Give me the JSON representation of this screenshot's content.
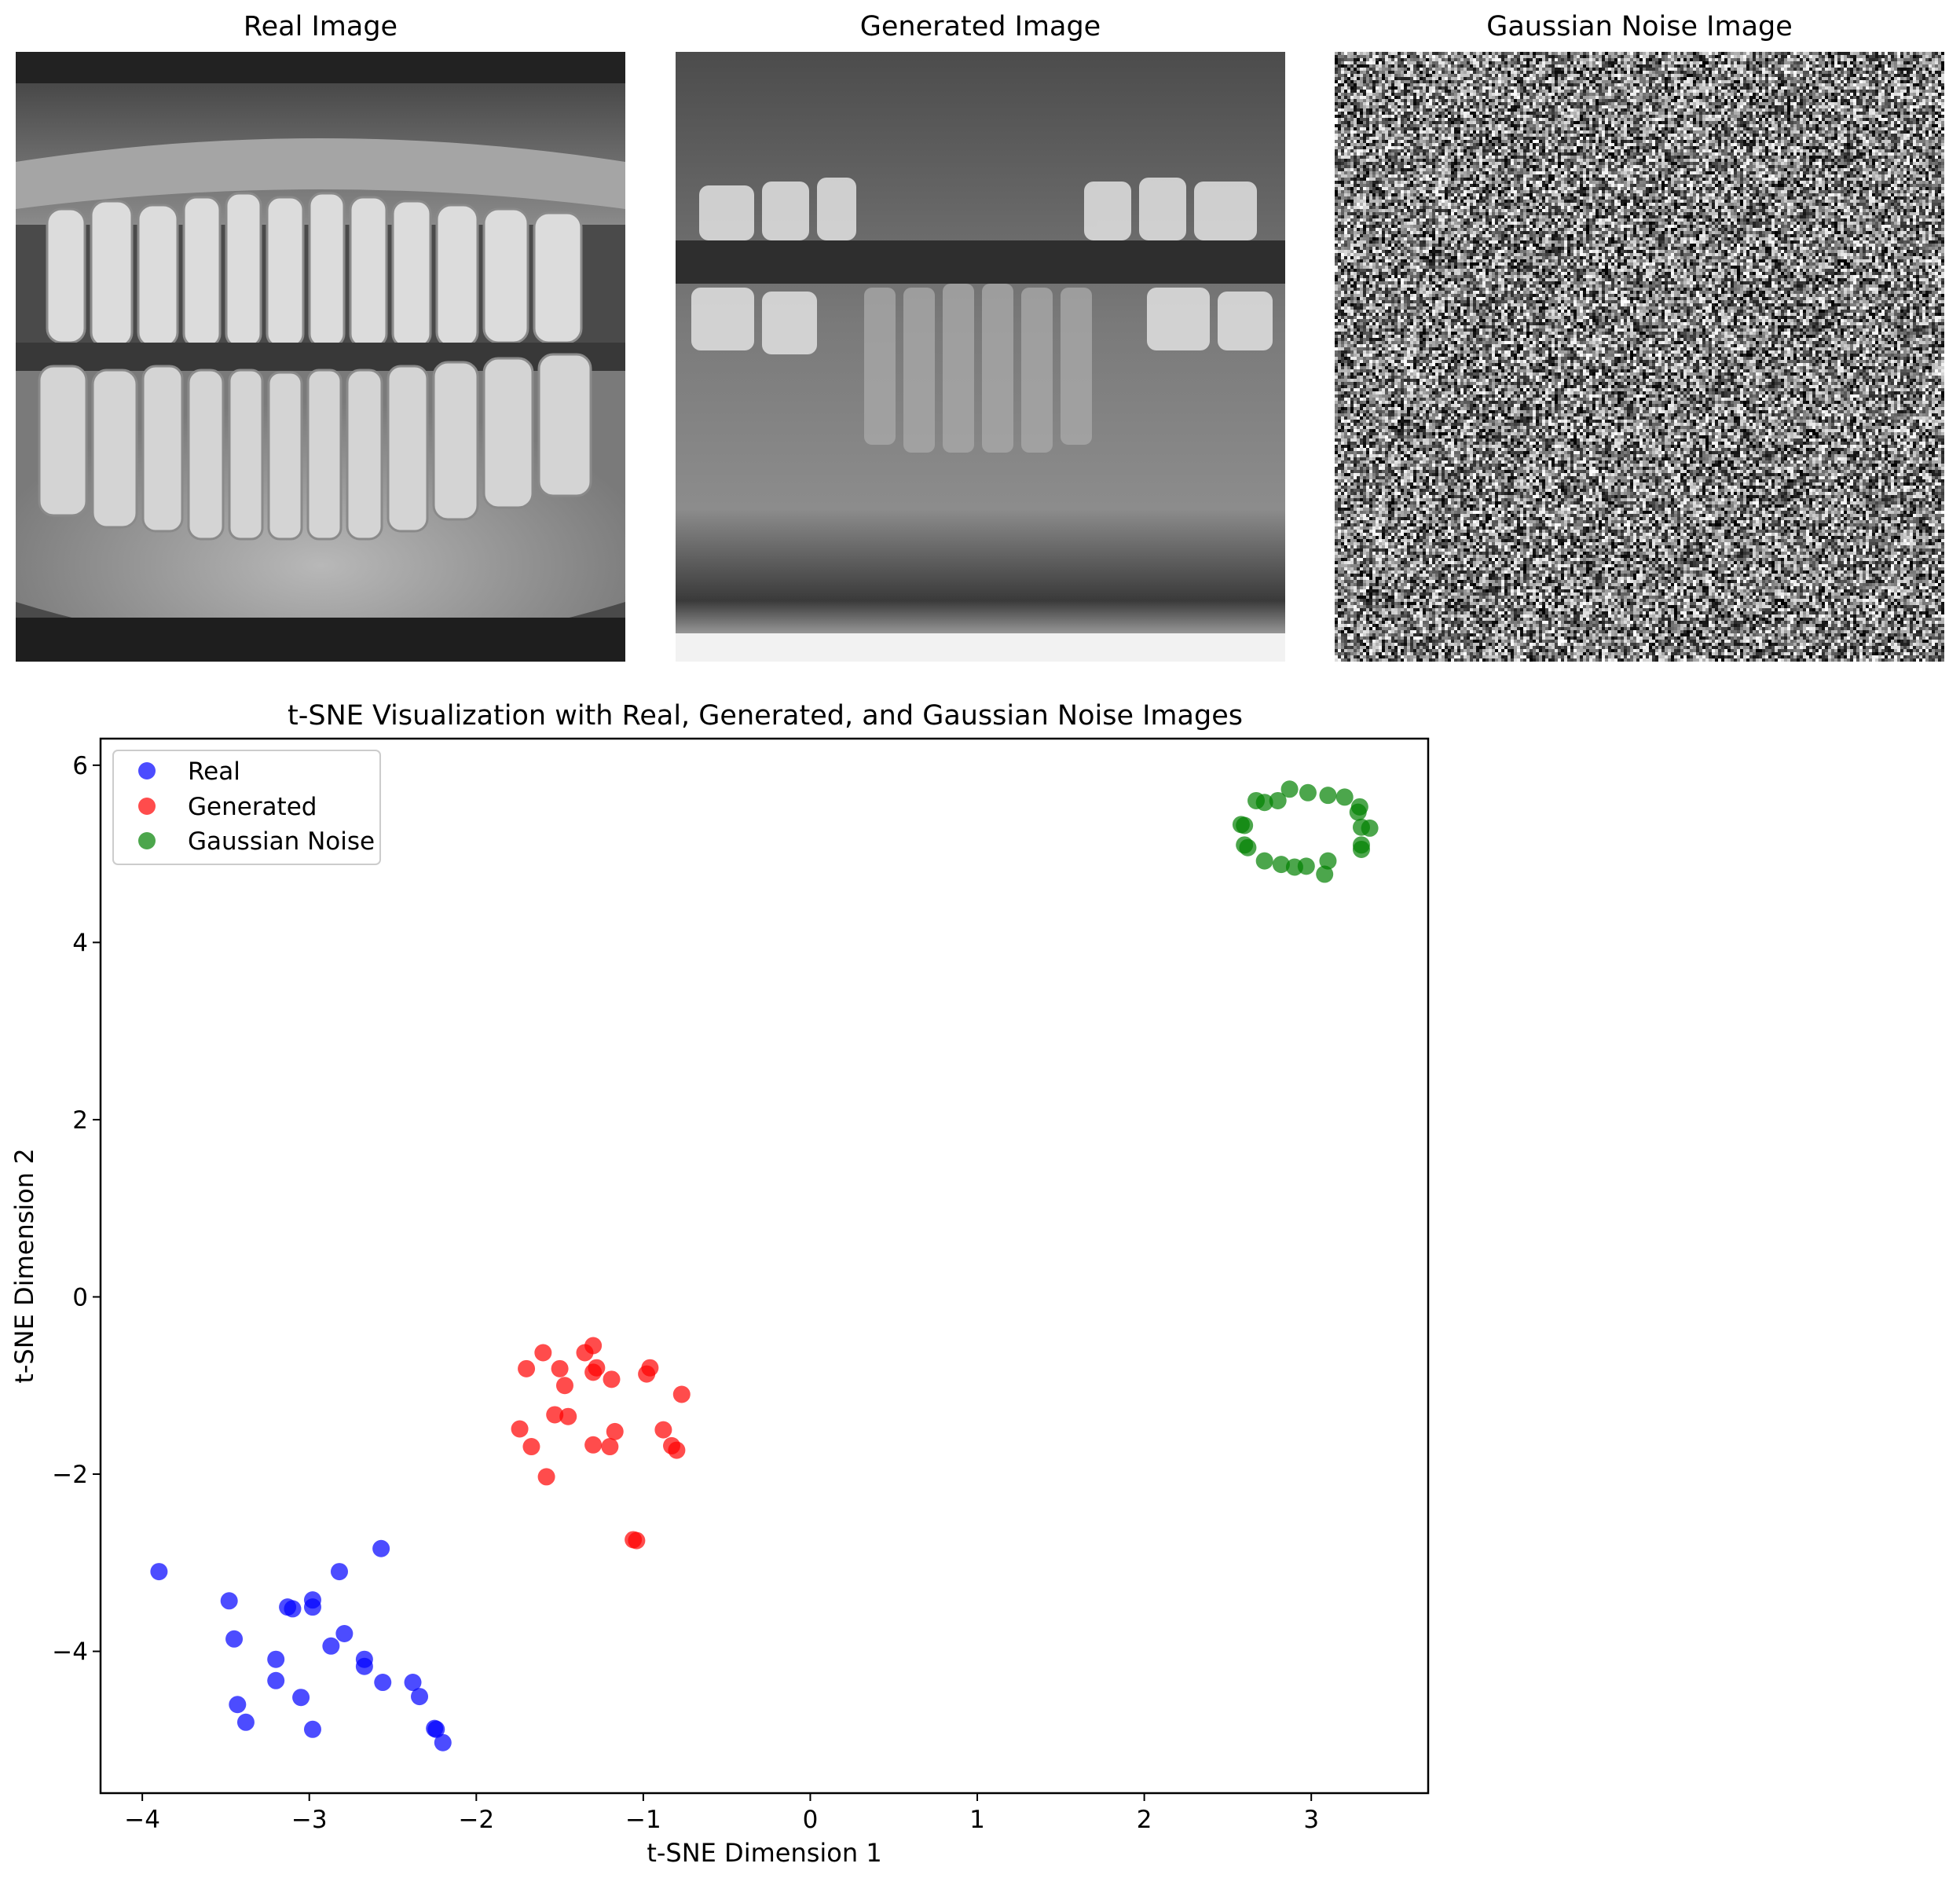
{
  "panels": {
    "real_title": "Real Image",
    "generated_title": "Generated Image",
    "noise_title": "Gaussian Noise Image"
  },
  "colors": {
    "real": "#0000ff",
    "generated": "#ff0000",
    "noise": "#008000"
  },
  "chart_data": {
    "type": "scatter",
    "title": "t-SNE Visualization with Real, Generated, and Gaussian Noise Images",
    "xlabel": "t-SNE Dimension 1",
    "ylabel": "t-SNE Dimension 2",
    "xlim": [
      -4.25,
      3.7
    ],
    "ylim": [
      -5.6,
      6.3
    ],
    "xticks": [
      -4,
      -3,
      -2,
      -1,
      0,
      1,
      2,
      3
    ],
    "yticks": [
      -4,
      -2,
      0,
      2,
      4,
      6
    ],
    "xtick_labels": [
      "−4",
      "−3",
      "−2",
      "−1",
      "0",
      "1",
      "2",
      "3"
    ],
    "ytick_labels": [
      "−4",
      "−2",
      "0",
      "2",
      "4",
      "6"
    ],
    "grid": false,
    "legend_position": "top-left",
    "series": [
      {
        "name": "Real",
        "color": "#0000ff",
        "points": [
          [
            -3.9,
            -3.1
          ],
          [
            -3.48,
            -3.43
          ],
          [
            -3.45,
            -3.86
          ],
          [
            -3.43,
            -4.6
          ],
          [
            -3.38,
            -4.8
          ],
          [
            -3.2,
            -4.09
          ],
          [
            -3.2,
            -4.33
          ],
          [
            -3.13,
            -3.5
          ],
          [
            -3.1,
            -3.52
          ],
          [
            -3.05,
            -4.52
          ],
          [
            -2.98,
            -3.42
          ],
          [
            -2.98,
            -3.5
          ],
          [
            -2.98,
            -4.88
          ],
          [
            -2.87,
            -3.94
          ],
          [
            -2.82,
            -3.1
          ],
          [
            -2.79,
            -3.8
          ],
          [
            -2.67,
            -4.09
          ],
          [
            -2.67,
            -4.17
          ],
          [
            -2.57,
            -2.84
          ],
          [
            -2.56,
            -4.35
          ],
          [
            -2.38,
            -4.35
          ],
          [
            -2.34,
            -4.51
          ],
          [
            -2.25,
            -4.87
          ],
          [
            -2.24,
            -4.88
          ],
          [
            -2.2,
            -5.03
          ]
        ]
      },
      {
        "name": "Generated",
        "color": "#ff0000",
        "points": [
          [
            -1.74,
            -1.49
          ],
          [
            -1.7,
            -0.81
          ],
          [
            -1.67,
            -1.69
          ],
          [
            -1.6,
            -0.63
          ],
          [
            -1.58,
            -2.03
          ],
          [
            -1.53,
            -1.33
          ],
          [
            -1.5,
            -0.81
          ],
          [
            -1.47,
            -1.0
          ],
          [
            -1.45,
            -1.35
          ],
          [
            -1.35,
            -0.63
          ],
          [
            -1.3,
            -0.55
          ],
          [
            -1.3,
            -0.85
          ],
          [
            -1.3,
            -1.67
          ],
          [
            -1.28,
            -0.8
          ],
          [
            -1.2,
            -1.69
          ],
          [
            -1.19,
            -0.93
          ],
          [
            -1.17,
            -1.52
          ],
          [
            -1.06,
            -2.74
          ],
          [
            -1.04,
            -2.75
          ],
          [
            -0.98,
            -0.87
          ],
          [
            -0.96,
            -0.8
          ],
          [
            -0.88,
            -1.5
          ],
          [
            -0.83,
            -1.68
          ],
          [
            -0.8,
            -1.73
          ],
          [
            -0.77,
            -1.1
          ]
        ]
      },
      {
        "name": "Gaussian Noise",
        "color": "#008000",
        "points": [
          [
            2.58,
            5.33
          ],
          [
            2.6,
            5.32
          ],
          [
            2.6,
            5.1
          ],
          [
            2.62,
            5.07
          ],
          [
            2.67,
            5.6
          ],
          [
            2.72,
            5.58
          ],
          [
            2.72,
            4.92
          ],
          [
            2.8,
            5.6
          ],
          [
            2.82,
            4.88
          ],
          [
            2.87,
            5.73
          ],
          [
            2.9,
            4.85
          ],
          [
            2.97,
            4.86
          ],
          [
            2.98,
            5.69
          ],
          [
            3.08,
            4.77
          ],
          [
            3.1,
            4.92
          ],
          [
            3.1,
            5.66
          ],
          [
            3.2,
            5.64
          ],
          [
            3.28,
            5.47
          ],
          [
            3.29,
            5.53
          ],
          [
            3.3,
            5.3
          ],
          [
            3.3,
            5.05
          ],
          [
            3.3,
            5.1
          ],
          [
            3.35,
            5.29
          ]
        ]
      }
    ]
  }
}
